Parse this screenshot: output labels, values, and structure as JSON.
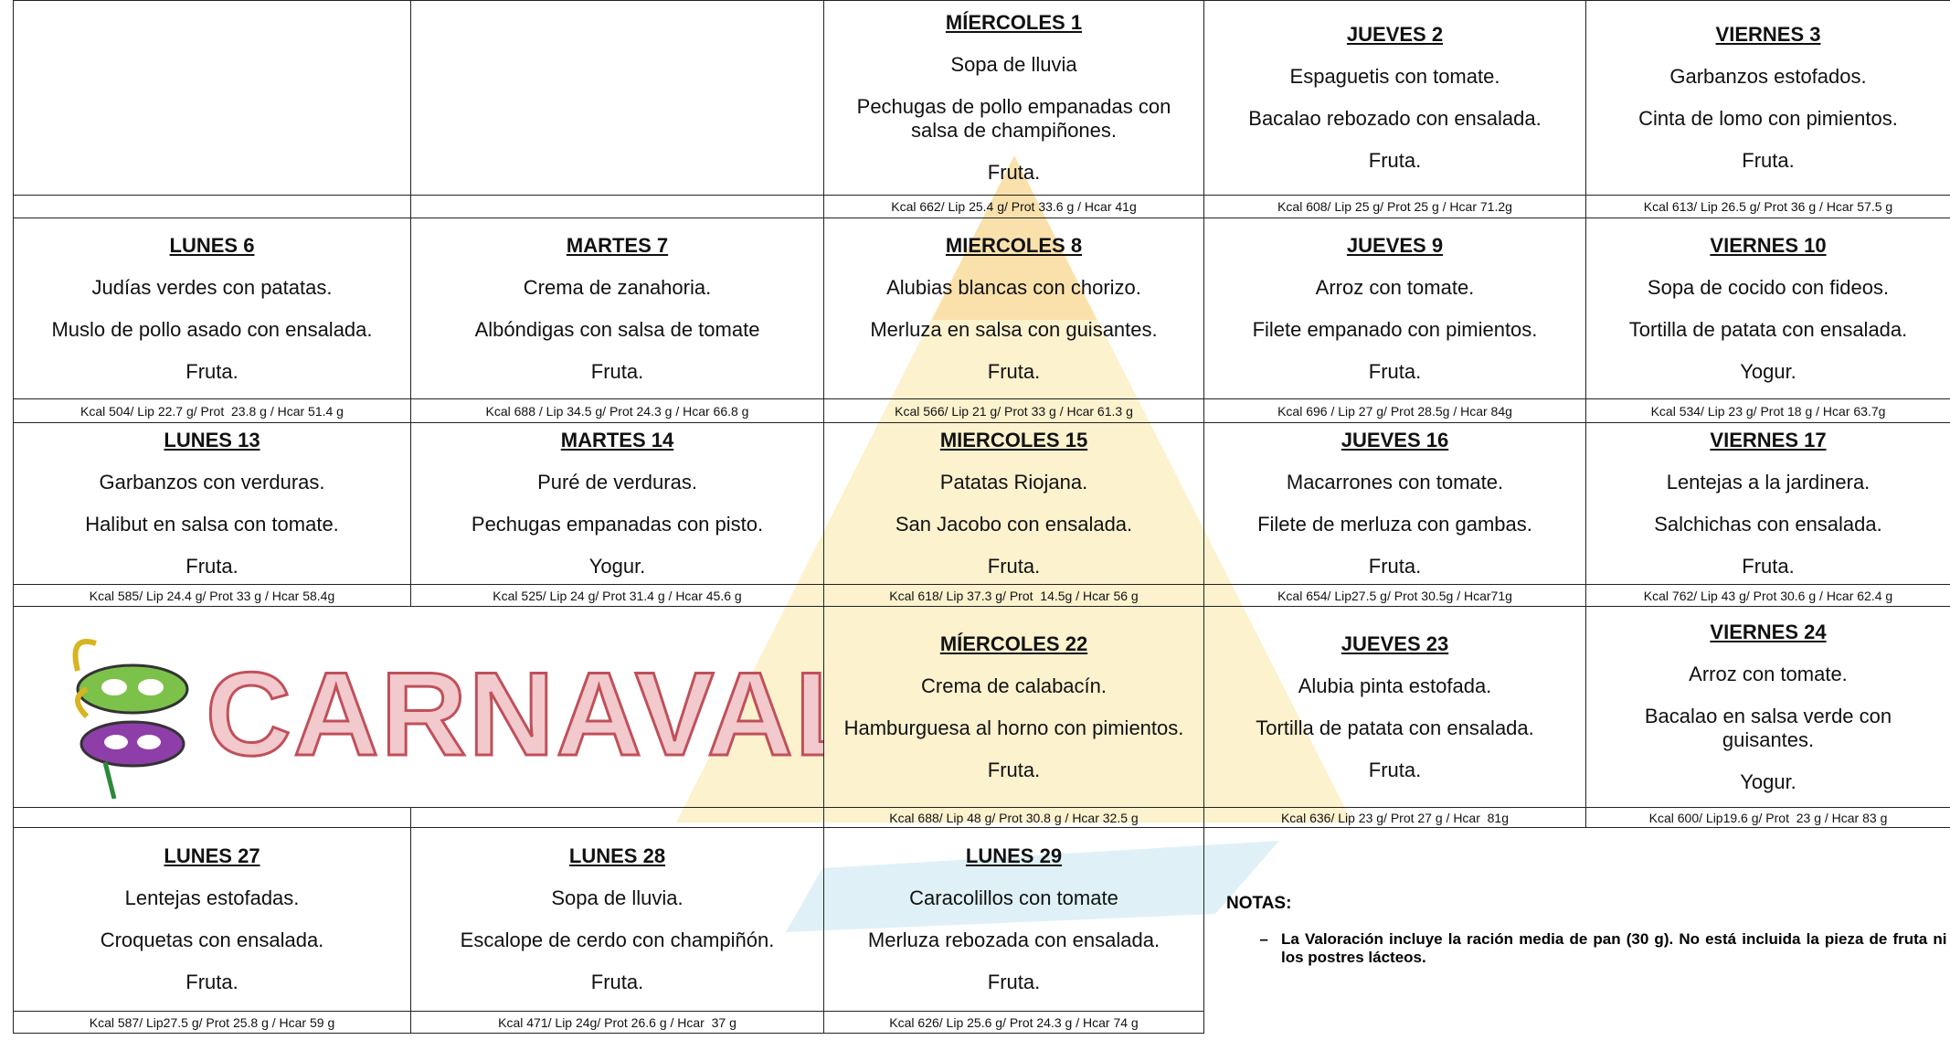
{
  "weeks": [
    {
      "days": [
        {
          "title": "MÍERCOLES 1",
          "dishes": [
            "Sopa de lluvia",
            "Pechugas de pollo empanadas con salsa de champiñones.",
            "Fruta."
          ],
          "kcal": "Kcal 662/ Lip 25.4 g/ Prot 33.6 g / Hcar 41g"
        },
        {
          "title": "JUEVES 2",
          "dishes": [
            "Espaguetis con tomate.",
            "Bacalao rebozado con ensalada.",
            "Fruta."
          ],
          "kcal": "Kcal 608/ Lip 25 g/ Prot 25 g / Hcar 71.2g"
        },
        {
          "title": "VIERNES 3",
          "dishes": [
            "Garbanzos estofados.",
            "Cinta de lomo con pimientos.",
            "Fruta."
          ],
          "kcal": "Kcal 613/ Lip 26.5 g/ Prot 36 g / Hcar 57.5 g"
        }
      ]
    },
    {
      "days": [
        {
          "title": "LUNES 6",
          "dishes": [
            "Judías verdes con patatas.",
            "Muslo de pollo asado con ensalada.",
            "Fruta."
          ],
          "kcal": "Kcal 504/ Lip 22.7 g/ Prot  23.8 g / Hcar 51.4 g"
        },
        {
          "title": "MARTES 7",
          "dishes": [
            "Crema de zanahoria.",
            "Albóndigas con salsa de tomate",
            "Fruta."
          ],
          "kcal": "Kcal 688 / Lip 34.5 g/ Prot 24.3 g / Hcar 66.8 g"
        },
        {
          "title": "MIERCOLES 8",
          "dishes": [
            "Alubias blancas con chorizo.",
            "Merluza en salsa con guisantes.",
            "Fruta."
          ],
          "kcal": "Kcal 566/ Lip 21 g/ Prot 33 g / Hcar 61.3 g"
        },
        {
          "title": "JUEVES 9",
          "dishes": [
            "Arroz con tomate.",
            "Filete empanado con pimientos.",
            "Fruta."
          ],
          "kcal": "Kcal 696 / Lip 27 g/ Prot 28.5g / Hcar 84g"
        },
        {
          "title": "VIERNES 10",
          "dishes": [
            "Sopa de cocido con fideos.",
            "Tortilla de patata con ensalada.",
            "Yogur."
          ],
          "kcal": "Kcal 534/ Lip 23 g/ Prot 18 g / Hcar 63.7g"
        }
      ]
    },
    {
      "days": [
        {
          "title": "LUNES 13",
          "dishes": [
            "Garbanzos con verduras.",
            "Halibut en salsa con tomate.",
            "Fruta."
          ],
          "kcal": "Kcal 585/ Lip 24.4 g/ Prot 33 g / Hcar 58.4g"
        },
        {
          "title": "MARTES 14",
          "dishes": [
            "Puré de verduras.",
            "Pechugas empanadas con pisto.",
            "Yogur."
          ],
          "kcal": "Kcal 525/ Lip 24 g/ Prot 31.4 g / Hcar 45.6 g"
        },
        {
          "title": "MIERCOLES 15",
          "dishes": [
            "Patatas Riojana.",
            "San Jacobo con ensalada.",
            "Fruta."
          ],
          "kcal": "Kcal 618/ Lip 37.3 g/ Prot  14.5g / Hcar 56 g"
        },
        {
          "title": "JUEVES 16",
          "dishes": [
            "Macarrones  con tomate.",
            "Filete de merluza con gambas.",
            "Fruta."
          ],
          "kcal": "Kcal 654/ Lip27.5 g/ Prot 30.5g / Hcar71g"
        },
        {
          "title": "VIERNES 17",
          "dishes": [
            "Lentejas a la jardinera.",
            "Salchichas con ensalada.",
            "Fruta."
          ],
          "kcal": "Kcal 762/ Lip 43 g/ Prot 30.6 g / Hcar 62.4 g"
        }
      ]
    },
    {
      "carnaval": "CARNAVAL",
      "days": [
        {
          "title": "MÍERCOLES 22",
          "dishes": [
            "Crema de calabacín.",
            "Hamburguesa al horno con pimientos.",
            "Fruta."
          ],
          "kcal": "Kcal 688/ Lip 48 g/ Prot 30.8 g / Hcar 32.5 g"
        },
        {
          "title": "JUEVES 23",
          "dishes": [
            "Alubia pinta estofada.",
            "Tortilla de patata con ensalada.",
            "Fruta."
          ],
          "kcal": "Kcal 636/ Lip 23 g/ Prot 27 g / Hcar  81g"
        },
        {
          "title": "VIERNES 24",
          "dishes": [
            "Arroz con tomate.",
            "Bacalao en salsa verde con guisantes.",
            "Yogur."
          ],
          "kcal": "Kcal 600/ Lip19.6 g/ Prot  23 g / Hcar 83 g"
        }
      ]
    },
    {
      "days": [
        {
          "title": "LUNES 27",
          "dishes": [
            "Lentejas estofadas.",
            "Croquetas con ensalada.",
            "Fruta."
          ],
          "kcal": "Kcal 587/ Lip27.5 g/ Prot 25.8 g / Hcar 59 g"
        },
        {
          "title": "LUNES 28",
          "dishes": [
            "Sopa de lluvia.",
            "Escalope de cerdo con champiñón.",
            "Fruta."
          ],
          "kcal": "Kcal 471/ Lip 24g/ Prot 26.6 g / Hcar  37 g"
        },
        {
          "title": "LUNES 29",
          "dishes": [
            "Caracolillos con tomate",
            "Merluza rebozada con ensalada.",
            "Fruta."
          ],
          "kcal": "Kcal 626/ Lip 25.6 g/ Prot 24.3 g / Hcar 74 g"
        }
      ]
    }
  ],
  "notes": {
    "heading": "NOTAS",
    "items": [
      "La Valoración incluye la ración media de pan (30 g). No está incluida la pieza de fruta ni los postres lácteos."
    ]
  }
}
